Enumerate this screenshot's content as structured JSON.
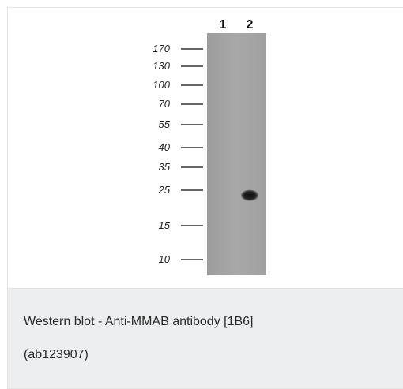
{
  "figure": {
    "lanes": [
      "1",
      "2"
    ],
    "markers": [
      {
        "label": "170",
        "kda": 170
      },
      {
        "label": "130",
        "kda": 130
      },
      {
        "label": "100",
        "kda": 100
      },
      {
        "label": "70",
        "kda": 70
      },
      {
        "label": "55",
        "kda": 55
      },
      {
        "label": "40",
        "kda": 40
      },
      {
        "label": "35",
        "kda": 35
      },
      {
        "label": "25",
        "kda": 25
      },
      {
        "label": "15",
        "kda": 15
      },
      {
        "label": "10",
        "kda": 10
      }
    ],
    "band": {
      "lane": "2",
      "kda": 24
    },
    "colors": {
      "membrane": "#a4a4a4",
      "band": "#1a1a1a",
      "marker_line": "#333333"
    }
  },
  "caption": {
    "line1": "Western blot - Anti-MMAB antibody [1B6]",
    "line2": "(ab123907)"
  }
}
